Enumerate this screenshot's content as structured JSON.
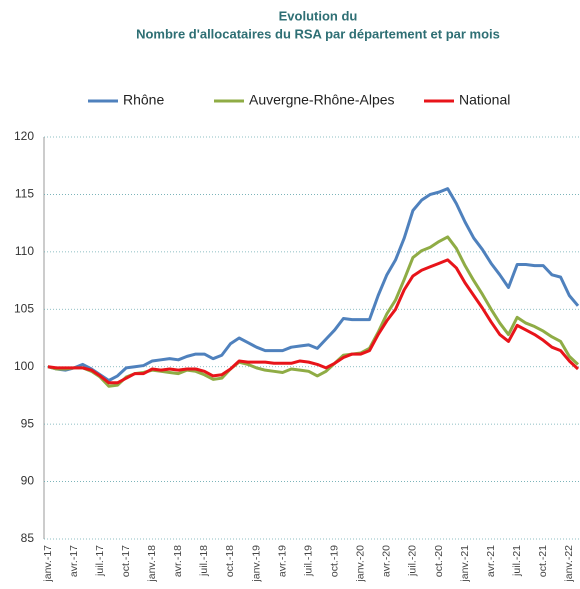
{
  "chart_data": {
    "type": "line",
    "title": "Evolution du",
    "subtitle": "Nombre d'allocataires du RSA par département et par mois",
    "categories": [
      "janv.-17",
      null,
      null,
      "avr.-17",
      null,
      null,
      "juil.-17",
      null,
      null,
      "oct.-17",
      null,
      null,
      "janv.-18",
      null,
      null,
      "avr.-18",
      null,
      null,
      "juil.-18",
      null,
      null,
      "oct.-18",
      null,
      null,
      "janv.-19",
      null,
      null,
      "avr.-19",
      null,
      null,
      "juil.-19",
      null,
      null,
      "oct.-19",
      null,
      null,
      "janv.-20",
      null,
      null,
      "avr.-20",
      null,
      null,
      "juil.-20",
      null,
      null,
      "oct.-20",
      null,
      null,
      "janv.-21",
      null,
      null,
      "avr.-21",
      null,
      null,
      "juil.-21",
      null,
      null,
      "oct.-21",
      null,
      null,
      "janv.-22",
      null
    ],
    "series": [
      {
        "name": "Rhône",
        "color": "#4f81bd",
        "values": [
          100,
          99.8,
          99.7,
          99.9,
          100.2,
          99.8,
          99.3,
          98.8,
          99.2,
          99.9,
          100.0,
          100.1,
          100.5,
          100.6,
          100.7,
          100.6,
          100.9,
          101.1,
          101.1,
          100.7,
          101.0,
          102.0,
          102.5,
          102.1,
          101.7,
          101.4,
          101.4,
          101.4,
          101.7,
          101.8,
          101.9,
          101.6,
          102.4,
          103.2,
          104.2,
          104.1,
          104.1,
          104.1,
          106.2,
          108.0,
          109.3,
          111.2,
          113.6,
          114.5,
          115.0,
          115.2,
          115.5,
          114.2,
          112.6,
          111.2,
          110.2,
          109.0,
          108.0,
          106.9,
          108.9,
          108.9,
          108.8,
          108.8,
          108.0,
          107.8,
          106.2,
          105.3
        ]
      },
      {
        "name": "Auvergne-Rhône-Alpes",
        "color": "#8fac45",
        "values": [
          100,
          99.8,
          99.8,
          99.9,
          99.9,
          99.6,
          99.1,
          98.3,
          98.4,
          99.1,
          99.4,
          99.5,
          99.7,
          99.6,
          99.5,
          99.4,
          99.7,
          99.6,
          99.3,
          98.9,
          99.0,
          99.8,
          100.4,
          100.2,
          99.9,
          99.7,
          99.6,
          99.5,
          99.8,
          99.7,
          99.6,
          99.2,
          99.6,
          100.3,
          101.0,
          101.1,
          101.2,
          101.6,
          103.0,
          104.6,
          105.8,
          107.6,
          109.5,
          110.1,
          110.4,
          110.9,
          111.3,
          110.3,
          108.8,
          107.5,
          106.3,
          105.0,
          103.8,
          102.8,
          104.3,
          103.8,
          103.5,
          103.1,
          102.6,
          102.2,
          100.9,
          100.2
        ]
      },
      {
        "name": "National",
        "color": "#e8141a",
        "values": [
          100,
          99.9,
          99.9,
          99.9,
          99.9,
          99.7,
          99.2,
          98.6,
          98.6,
          99.0,
          99.4,
          99.4,
          99.8,
          99.7,
          99.8,
          99.7,
          99.8,
          99.8,
          99.6,
          99.2,
          99.3,
          99.8,
          100.5,
          100.4,
          100.4,
          100.4,
          100.3,
          100.3,
          100.3,
          100.5,
          100.4,
          100.2,
          99.9,
          100.3,
          100.8,
          101.1,
          101.1,
          101.4,
          102.8,
          104.0,
          105.0,
          106.7,
          107.9,
          108.4,
          108.7,
          109.0,
          109.3,
          108.6,
          107.3,
          106.2,
          105.1,
          103.9,
          102.8,
          102.2,
          103.6,
          103.2,
          102.8,
          102.3,
          101.7,
          101.4,
          100.5,
          99.8
        ]
      }
    ],
    "ylim": [
      85,
      120
    ],
    "yticks": [
      85,
      90,
      95,
      100,
      105,
      110,
      115,
      120
    ],
    "grid": true,
    "legend": "top"
  }
}
